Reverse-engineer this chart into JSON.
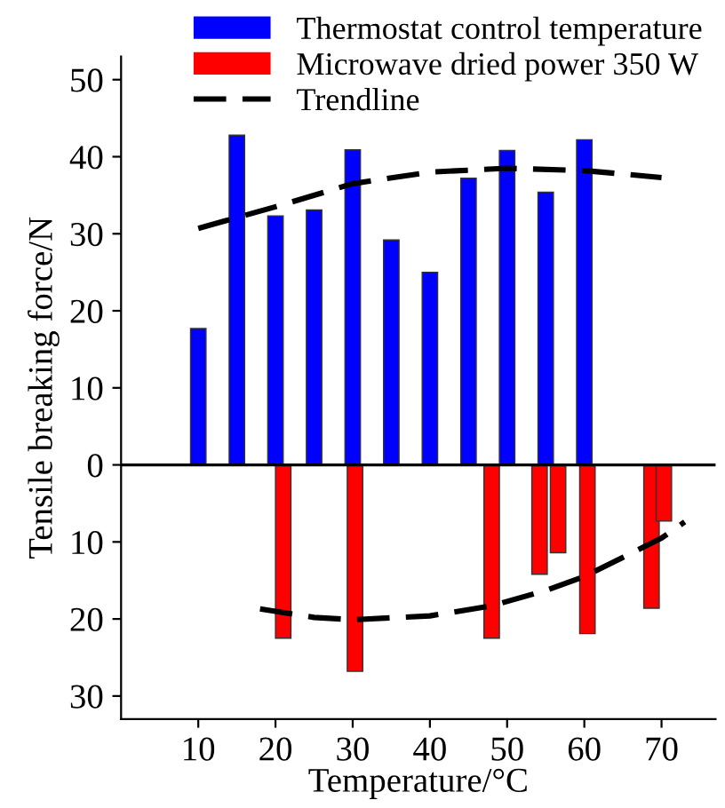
{
  "chart_data": {
    "type": "bar",
    "xlabel": "Temperature/°C",
    "ylabel": "Tensile breaking force/N",
    "series": [
      {
        "name": "Thermostat control temperature",
        "color": "#0000ff",
        "x": [
          10,
          15,
          20,
          25,
          30,
          35,
          40,
          45,
          50,
          55,
          60
        ],
        "values": [
          17.7,
          42.8,
          32.3,
          33.1,
          40.9,
          29.2,
          25.0,
          37.2,
          40.8,
          35.4,
          42.2
        ]
      },
      {
        "name": "Microwave dried power 350 W",
        "color": "#ff0000",
        "x": [
          21,
          30.3,
          48,
          54.2,
          56.6,
          60.4,
          68.7,
          70.3
        ],
        "values": [
          -22.5,
          -26.8,
          -22.5,
          -14.2,
          -11.4,
          -21.9,
          -18.6,
          -7.3
        ]
      },
      {
        "name": "Trendline",
        "type": "line",
        "color": "#000000",
        "line_style": "dashed",
        "x": [
          10,
          20,
          30,
          40,
          50,
          60,
          70
        ],
        "values": [
          30.7,
          33.5,
          36.5,
          38.0,
          38.5,
          38.2,
          37.3
        ]
      },
      {
        "type": "line",
        "color": "#000000",
        "line_style": "dashed",
        "x": [
          18,
          25,
          30,
          40,
          48,
          55,
          60,
          65,
          70,
          73
        ],
        "values": [
          -18.7,
          -19.8,
          -20.1,
          -19.6,
          -18.3,
          -16.3,
          -14.5,
          -12.0,
          -9.5,
          -7.4
        ]
      }
    ],
    "xlim": [
      0,
      77
    ],
    "xticks": [
      10,
      20,
      30,
      40,
      50,
      60,
      70
    ],
    "ylim": [
      -33,
      53
    ],
    "yticks": [
      50,
      40,
      30,
      20,
      10,
      0,
      {
        "value": -10,
        "label": "10"
      },
      {
        "value": -20,
        "label": "20"
      },
      {
        "value": -30,
        "label": "30"
      }
    ],
    "ref_lines": [
      {
        "axis": "y",
        "value": 0,
        "color": "#000000"
      }
    ],
    "grid": false,
    "legend": "top"
  }
}
